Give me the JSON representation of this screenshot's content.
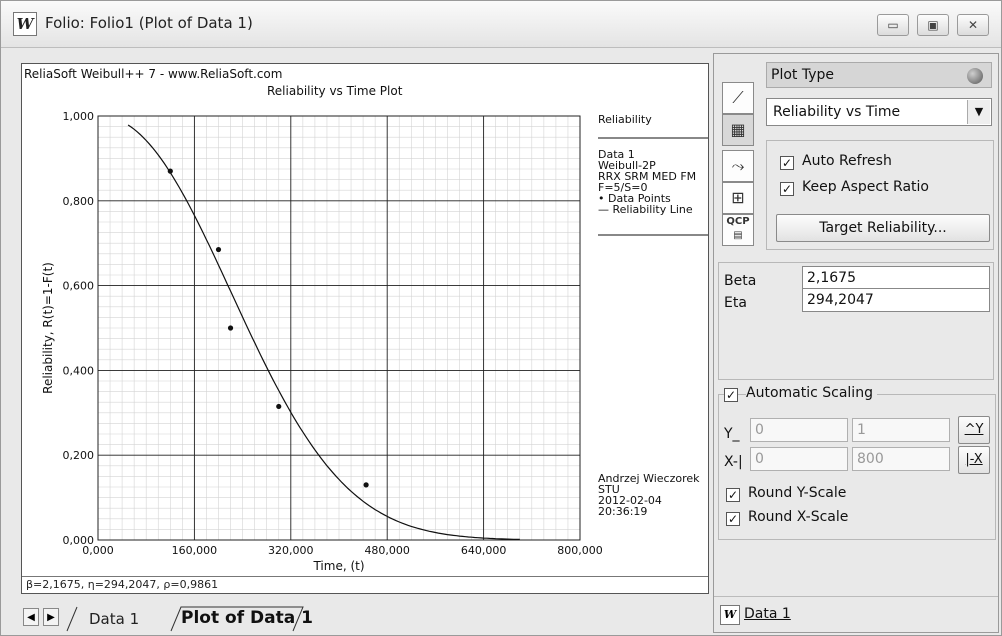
{
  "window": {
    "title": "Folio: Folio1 (Plot of Data 1)",
    "app_icon": "W"
  },
  "plot": {
    "header_left": "ReliaSoft Weibull++ 7 - www.ReliaSoft.com",
    "footer_text": "β=2,1675, η=294,2047, ρ=0,9861",
    "legend": {
      "title": "Reliability",
      "lines": [
        "Data 1",
        "Weibull-2P",
        "RRX SRM MED FM",
        "F=5/S=0",
        "• Data Points",
        "— Reliability Line"
      ]
    },
    "author": [
      "Andrzej Wieczorek",
      "STU",
      "2012-02-04",
      "20:36:19"
    ]
  },
  "chart_data": {
    "type": "line",
    "title": "Reliability vs Time Plot",
    "xlabel": "Time, (t)",
    "ylabel": "Reliability, R(t)=1-F(t)",
    "xlim": [
      0,
      800
    ],
    "ylim": [
      0,
      1
    ],
    "x_ticks": [
      "0,000",
      "160,000",
      "320,000",
      "480,000",
      "640,000",
      "800,000"
    ],
    "y_ticks": [
      "0,000",
      "0,200",
      "0,400",
      "0,600",
      "0,800",
      "1,000"
    ],
    "grid": true,
    "series": [
      {
        "name": "Data Points",
        "kind": "scatter",
        "x": [
          120,
          200,
          220,
          300,
          445
        ],
        "y": [
          0.87,
          0.685,
          0.5,
          0.315,
          0.13
        ]
      },
      {
        "name": "Reliability Line",
        "kind": "line",
        "beta": 2.1675,
        "eta": 294.2047,
        "x_range": [
          50,
          700
        ]
      }
    ]
  },
  "sidebar": {
    "plot_type_label": "Plot Type",
    "plot_type_value": "Reliability vs Time",
    "auto_refresh": "Auto Refresh",
    "keep_aspect": "Keep Aspect Ratio",
    "target_btn": "Target Reliability...",
    "beta_label": "Beta",
    "beta_value": "2,1675",
    "eta_label": "Eta",
    "eta_value": "294,2047",
    "auto_scaling": "Automatic Scaling",
    "y_label": "Y_",
    "y_min": "0",
    "y_max": "1",
    "y_btn": "^Y",
    "x_label": "X-|",
    "x_min": "0",
    "x_max": "800",
    "x_btn": "|-X",
    "round_y": "Round Y-Scale",
    "round_x": "Round X-Scale",
    "data_link": "Data 1"
  },
  "tabs": {
    "tab1": "Data 1",
    "tab2": "Plot of Data 1"
  }
}
